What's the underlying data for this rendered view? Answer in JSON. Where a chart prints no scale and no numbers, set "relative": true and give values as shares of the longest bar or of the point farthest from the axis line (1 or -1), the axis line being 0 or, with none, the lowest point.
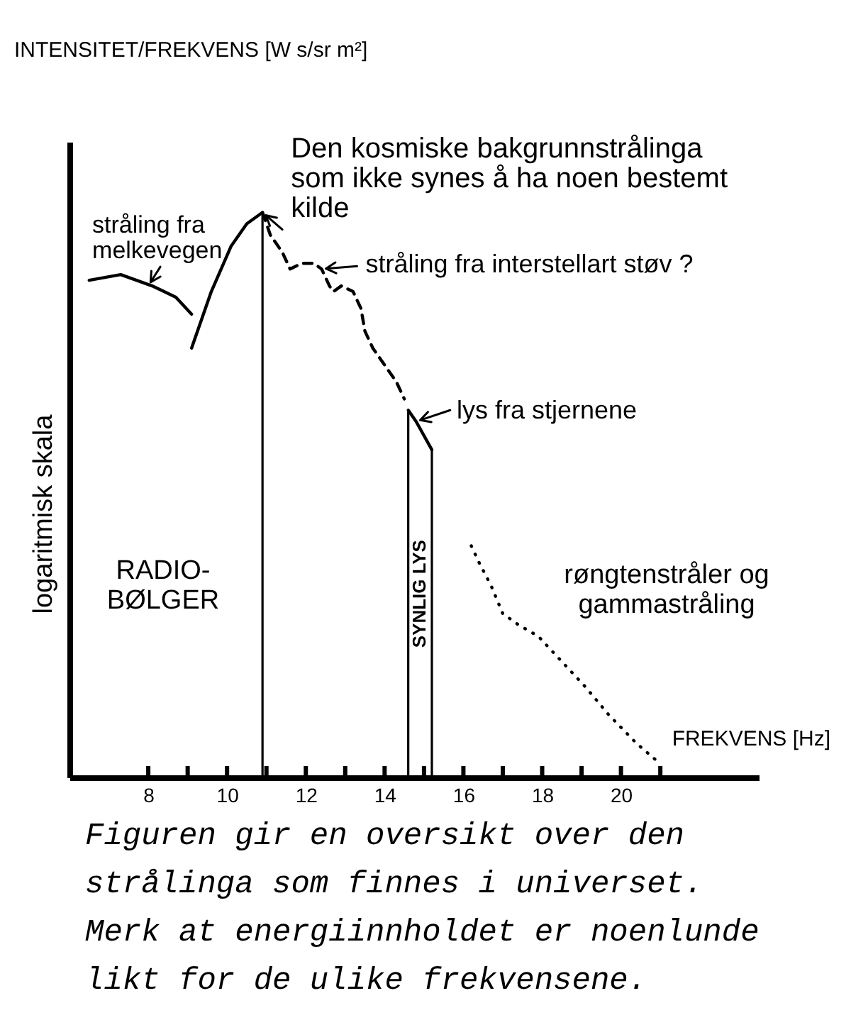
{
  "chart_data": {
    "type": "line",
    "xlabel": "FREKVENS [Hz]",
    "ylabel": "logaritmisk skala",
    "relative": true,
    "xlim": [
      6,
      23.5
    ],
    "xticks": [
      8,
      {
        "value": 9,
        "label": null
      },
      10,
      {
        "value": 11,
        "label": null
      },
      12,
      {
        "value": 13,
        "label": null
      },
      14,
      {
        "value": 15,
        "label": null
      },
      16,
      {
        "value": 17,
        "label": null
      },
      18,
      {
        "value": 19,
        "label": null
      },
      20,
      {
        "value": 21,
        "label": null
      }
    ],
    "series": [
      {
        "color": "#000000",
        "line_style": "solid",
        "x": [
          6.5,
          7.3,
          8.1,
          8.7,
          9.1
        ],
        "values": [
          0.88,
          0.89,
          0.87,
          0.85,
          0.82
        ]
      },
      {
        "color": "#000000",
        "line_style": "solid",
        "x": [
          9.1,
          9.6,
          10.1,
          10.5,
          10.9
        ],
        "values": [
          0.76,
          0.86,
          0.94,
          0.98,
          1.0
        ]
      },
      {
        "color": "#000000",
        "line_style": "dashed",
        "x": [
          10.9,
          11.1,
          11.4,
          11.6,
          11.9,
          12.2,
          12.4,
          12.6,
          12.7,
          12.9,
          13.2,
          13.4,
          13.5,
          13.7,
          14.0,
          14.3,
          14.5
        ],
        "values": [
          1.0,
          0.96,
          0.93,
          0.9,
          0.91,
          0.91,
          0.9,
          0.87,
          0.86,
          0.87,
          0.86,
          0.83,
          0.79,
          0.76,
          0.73,
          0.7,
          0.67
        ]
      },
      {
        "color": "#000000",
        "line_style": "solid",
        "x": [
          14.6,
          14.8,
          15.2
        ],
        "values": [
          0.65,
          0.63,
          0.58
        ]
      },
      {
        "color": "#000000",
        "line_style": "dotted",
        "x": [
          16.2,
          16.4,
          16.7,
          17.0,
          17.4,
          17.9,
          18.3,
          18.7,
          19.1,
          19.7,
          20.4,
          20.9
        ],
        "values": [
          0.41,
          0.38,
          0.34,
          0.29,
          0.27,
          0.25,
          0.22,
          0.19,
          0.16,
          0.11,
          0.06,
          0.03
        ]
      }
    ],
    "ref_lines": [
      {
        "axis": "x",
        "value": 10.9
      },
      {
        "axis": "x",
        "value": 14.6,
        "label": "SYNLIG LYS"
      },
      {
        "axis": "x",
        "value": 15.2
      }
    ],
    "annotations": [
      {
        "text": "stråling fra melkevegen",
        "x": 8.0,
        "y": 0.87
      },
      {
        "text": "Den kosmiske bakgrunnstrålinga som ikke synes å ha noen bestemt kilde",
        "x": 10.9,
        "y": 1.0
      },
      {
        "text": "stråling fra interstellart støv ?",
        "x": 12.4,
        "y": 0.9
      },
      {
        "text": "lys fra stjernene",
        "x": 14.8,
        "y": 0.63
      },
      "INTENSITET/FREKVENS [W s/sr m²]",
      "RADIO-BØLGER",
      "røngtenstråler og gammastråling",
      "Figuren gir en oversikt over den strålinga som finnes i universet. Merk at energiinnholdet er noenlunde likt for de ulike frekvensene."
    ]
  }
}
